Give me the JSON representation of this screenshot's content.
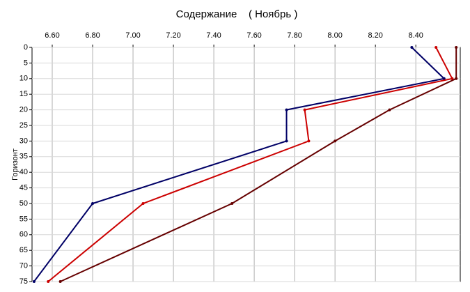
{
  "chart_data": {
    "type": "line",
    "title": "Содержание    ( Ноябрь )",
    "y_label": "Горизонт",
    "y": [
      0,
      10,
      20,
      30,
      50,
      75
    ],
    "series": [
      {
        "color": "#000066",
        "values": [
          8.38,
          8.54,
          7.76,
          7.76,
          6.8,
          6.51
        ]
      },
      {
        "color": "#cc0000",
        "values": [
          8.5,
          8.58,
          7.85,
          7.87,
          7.05,
          6.58
        ]
      },
      {
        "color": "#660000",
        "values": [
          8.6,
          8.6,
          8.27,
          8.0,
          7.49,
          6.64
        ]
      }
    ],
    "xlim": [
      6.5,
      8.62
    ],
    "xticks": [
      {
        "value": 6.6,
        "label": "6.60"
      },
      {
        "value": 6.8,
        "label": "6.80"
      },
      {
        "value": 7.0,
        "label": "7.00"
      },
      {
        "value": 7.2,
        "label": "7.20"
      },
      {
        "value": 7.4,
        "label": "7.40"
      },
      {
        "value": 7.6,
        "label": "7.60"
      },
      {
        "value": 7.8,
        "label": "7.80"
      },
      {
        "value": 8.0,
        "label": "8.00"
      },
      {
        "value": 8.2,
        "label": "8.20"
      },
      {
        "value": 8.4,
        "label": "8.40"
      }
    ],
    "ylim": [
      0,
      75
    ],
    "yticks": [
      0,
      5,
      10,
      15,
      20,
      25,
      30,
      35,
      40,
      45,
      50,
      55,
      60,
      65,
      70,
      75
    ],
    "y_inverted": true,
    "grid": true
  }
}
